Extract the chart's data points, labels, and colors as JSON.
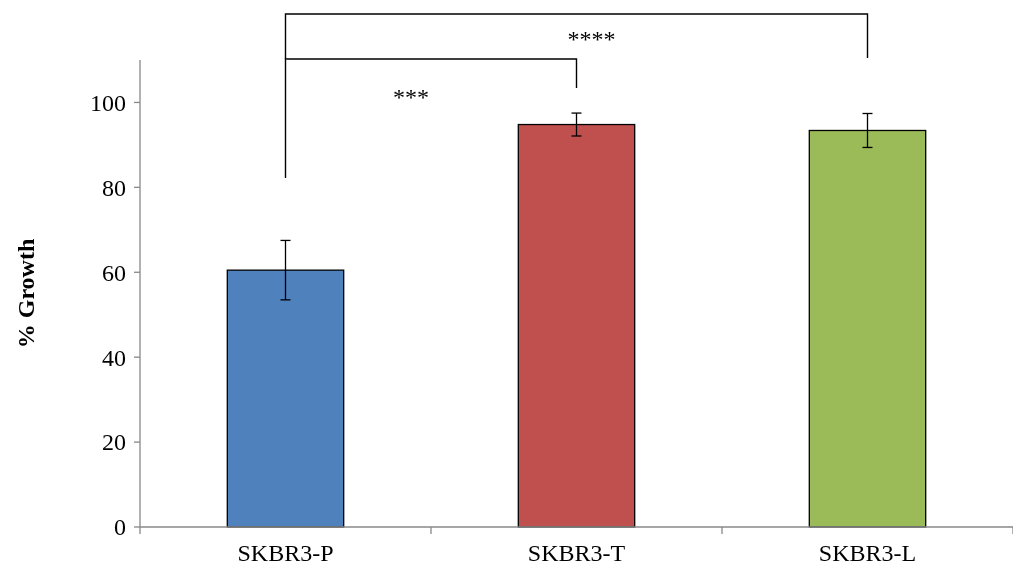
{
  "chart_data": {
    "type": "bar",
    "ylabel": "% Growth",
    "categories": [
      "SKBR3-P",
      "SKBR3-T",
      "SKBR3-L"
    ],
    "values": [
      60.5,
      94.8,
      93.4
    ],
    "colors": [
      "#4f81bd",
      "#c0504d",
      "#9bbb59"
    ],
    "errors": [
      7,
      2.7,
      4
    ],
    "ylim": [
      0,
      110
    ],
    "yticks": [
      0,
      20,
      40,
      60,
      80,
      100
    ],
    "annotations": [
      "***",
      "****"
    ]
  }
}
